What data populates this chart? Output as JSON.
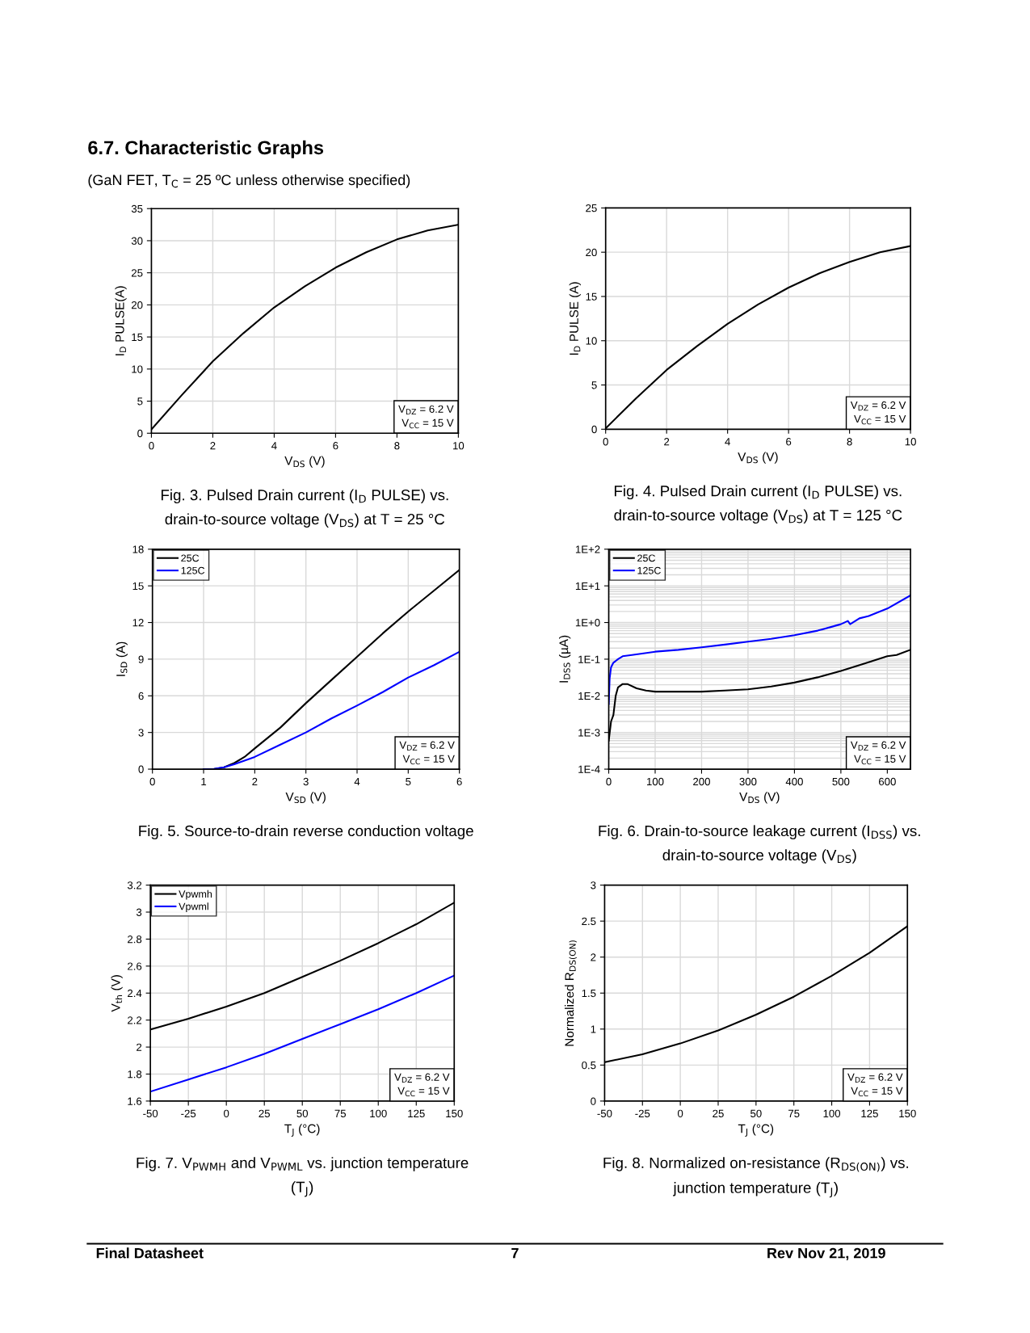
{
  "chart_data": [
    {
      "type": "line",
      "title": "Fig. 3. Pulsed Drain current (I$_{D}$ PULSE) vs.\ndrain-to-source voltage (V$_{DS}$) at T = 25 °C",
      "xlabel": "V$_{DS}$ (V)",
      "ylabel": "I$_{D}$ PULSE(A)",
      "annotations": [
        "V$_{DZ}$ = 6.2 V\nV$_{CC}$ = 15 V",
        "6.7. Characteristic Graphs",
        "(GaN FET, T$_{C}$ = 25 ºC unless otherwise specified)"
      ],
      "xlim": [
        0,
        10
      ],
      "xticks": [
        0,
        2,
        4,
        6,
        8,
        10
      ],
      "ylim": [
        0,
        35
      ],
      "yticks": [
        0,
        5,
        10,
        15,
        20,
        25,
        30,
        35
      ],
      "grid": true,
      "legend": false,
      "series": [
        {
          "color": "#000000",
          "x": [
            0,
            1,
            2,
            3,
            4,
            5,
            6,
            7,
            8,
            9,
            10
          ],
          "values": [
            0.6,
            6,
            11.2,
            15.6,
            19.6,
            22.9,
            25.8,
            28.2,
            30.2,
            31.6,
            32.5
          ]
        }
      ]
    },
    {
      "type": "line",
      "title": "Fig. 4. Pulsed Drain current (I$_{D}$ PULSE) vs.\ndrain-to-source voltage (V$_{DS}$) at T = 125 °C",
      "xlabel": "V$_{DS}$ (V)",
      "ylabel": "I$_{D}$ PULSE (A)",
      "annotations": [
        "V$_{DZ}$ = 6.2 V\nV$_{CC}$ = 15 V"
      ],
      "xlim": [
        0,
        10
      ],
      "xticks": [
        0,
        2,
        4,
        6,
        8,
        10
      ],
      "ylim": [
        0,
        25
      ],
      "yticks": [
        0,
        5,
        10,
        15,
        20,
        25
      ],
      "grid": true,
      "legend": false,
      "series": [
        {
          "color": "#000000",
          "x": [
            0,
            1,
            2,
            3,
            4,
            5,
            6,
            7,
            8,
            9,
            10
          ],
          "values": [
            0.1,
            3.5,
            6.7,
            9.4,
            11.9,
            14.1,
            16,
            17.6,
            18.9,
            20,
            20.7
          ]
        }
      ]
    },
    {
      "type": "line",
      "title": "Fig. 5. Source-to-drain reverse conduction voltage",
      "xlabel": "V$_{SD}$ (V)",
      "ylabel": "I$_{SD}$ (A)",
      "annotations": [
        "V$_{DZ}$ = 6.2 V\nV$_{CC}$ = 15 V"
      ],
      "xlim": [
        0,
        6
      ],
      "xticks": [
        0,
        1,
        2,
        3,
        4,
        5,
        6
      ],
      "ylim": [
        0,
        18
      ],
      "yticks": [
        0,
        3,
        6,
        9,
        12,
        15,
        18
      ],
      "grid": true,
      "legend": "top left",
      "series": [
        {
          "name": "25C",
          "color": "#000000",
          "x": [
            1,
            1.2,
            1.4,
            1.6,
            1.8,
            2,
            2.5,
            3,
            3.5,
            4,
            4.5,
            5,
            5.5,
            6
          ],
          "values": [
            0,
            0,
            0.15,
            0.5,
            1.0,
            1.7,
            3.4,
            5.4,
            7.3,
            9.2,
            11.1,
            12.9,
            14.6,
            16.3
          ]
        },
        {
          "name": "125C",
          "color": "#0000ff",
          "x": [
            1,
            1.2,
            1.4,
            1.6,
            1.8,
            2,
            2.5,
            3,
            3.5,
            4,
            4.5,
            5,
            5.5,
            6
          ],
          "values": [
            0,
            0.02,
            0.15,
            0.4,
            0.7,
            1.0,
            2.0,
            3.0,
            4.15,
            5.2,
            6.3,
            7.5,
            8.5,
            9.6
          ]
        }
      ]
    },
    {
      "type": "line",
      "title": "Fig. 6. Drain-to-source leakage current (I$_{DSS}$) vs.\ndrain-to-source voltage (V$_{DS}$)",
      "xlabel": "V$_{DS}$ (V)",
      "ylabel": "I$_{DSS}$ (µA)",
      "annotations": [
        "V$_{DZ}$ = 6.2 V\nV$_{CC}$ = 15 V"
      ],
      "log": "y",
      "xlim": [
        0,
        650
      ],
      "xticks": [
        0,
        100,
        200,
        300,
        400,
        500,
        600
      ],
      "ylim": [
        0.0001,
        100
      ],
      "yticks": [
        {
          "value": 0.0001,
          "label": "1E-4"
        },
        {
          "value": 0.001,
          "label": "1E-3"
        },
        {
          "value": 0.01,
          "label": "1E-2"
        },
        {
          "value": 0.1,
          "label": "1E-1"
        },
        {
          "value": 1,
          "label": "1E+0"
        },
        {
          "value": 10,
          "label": "1E+1"
        },
        {
          "value": 100,
          "label": "1E+2"
        }
      ],
      "grid": true,
      "legend": "top left",
      "series": [
        {
          "name": "25C",
          "color": "#000000",
          "x": [
            0,
            5,
            10,
            15,
            20,
            30,
            40,
            60,
            80,
            100,
            150,
            200,
            250,
            300,
            350,
            400,
            450,
            500,
            550,
            600,
            620,
            650
          ],
          "values": [
            0.0006,
            0.002,
            0.003,
            0.01,
            0.017,
            0.021,
            0.021,
            0.016,
            0.014,
            0.013,
            0.013,
            0.013,
            0.014,
            0.015,
            0.018,
            0.023,
            0.032,
            0.048,
            0.075,
            0.12,
            0.13,
            0.18
          ]
        },
        {
          "name": "125C",
          "color": "#0000ff",
          "x": [
            0,
            2,
            5,
            10,
            20,
            30,
            50,
            100,
            150,
            200,
            250,
            300,
            350,
            400,
            450,
            500,
            515,
            520,
            540,
            560,
            600,
            650
          ],
          "values": [
            0.006,
            0.03,
            0.06,
            0.08,
            0.1,
            0.12,
            0.13,
            0.16,
            0.18,
            0.21,
            0.25,
            0.3,
            0.36,
            0.45,
            0.6,
            0.9,
            1.1,
            0.9,
            1.3,
            1.5,
            2.4,
            5.5
          ]
        }
      ]
    },
    {
      "type": "line",
      "title": "Fig. 7. V$_{PWMH}$ and V$_{PWML}$ vs. junction temperature\n(T$_{J}$)",
      "xlabel": "T$_{J}$ (°C)",
      "ylabel": "V$_{th}$ (V)",
      "annotations": [
        "V$_{DZ}$ = 6.2 V\nV$_{CC}$ = 15 V"
      ],
      "xlim": [
        -50,
        150
      ],
      "xticks": [
        -50,
        -25,
        0,
        25,
        50,
        75,
        100,
        125,
        150
      ],
      "ylim": [
        1.6,
        3.2
      ],
      "yticks": [
        1.6,
        1.8,
        2,
        2.2,
        2.4,
        2.6,
        2.8,
        3,
        3.2
      ],
      "grid": true,
      "legend": "top left",
      "series": [
        {
          "name": "Vpwmh",
          "color": "#000000",
          "x": [
            -50,
            -25,
            0,
            25,
            50,
            75,
            100,
            125,
            150
          ],
          "values": [
            2.13,
            2.21,
            2.3,
            2.4,
            2.52,
            2.64,
            2.77,
            2.91,
            3.07
          ]
        },
        {
          "name": "Vpwml",
          "color": "#0000ff",
          "x": [
            -50,
            -25,
            0,
            25,
            50,
            75,
            100,
            125,
            150
          ],
          "values": [
            1.67,
            1.76,
            1.85,
            1.95,
            2.06,
            2.17,
            2.28,
            2.4,
            2.53
          ]
        }
      ]
    },
    {
      "type": "line",
      "title": "Fig. 8. Normalized on-resistance (R$_{DS(ON)}$) vs.\njunction temperature (T$_{J}$)",
      "xlabel": "T$_{J}$ (°C)",
      "ylabel": "Normalized R$_{DS(ON)}$",
      "annotations": [
        "V$_{DZ}$ = 6.2 V\nV$_{CC}$ = 15 V",
        "Final Datasheet",
        "7",
        "Rev Nov 21, 2019"
      ],
      "xlim": [
        -50,
        150
      ],
      "xticks": [
        -50,
        -25,
        0,
        25,
        50,
        75,
        100,
        125,
        150
      ],
      "ylim": [
        0,
        3
      ],
      "yticks": [
        0,
        0.5,
        1,
        1.5,
        2,
        2.5,
        3
      ],
      "grid": true,
      "legend": false,
      "series": [
        {
          "color": "#000000",
          "x": [
            -50,
            -25,
            0,
            25,
            50,
            75,
            100,
            125,
            150
          ],
          "values": [
            0.54,
            0.65,
            0.8,
            0.98,
            1.2,
            1.45,
            1.74,
            2.06,
            2.43
          ]
        }
      ]
    }
  ]
}
